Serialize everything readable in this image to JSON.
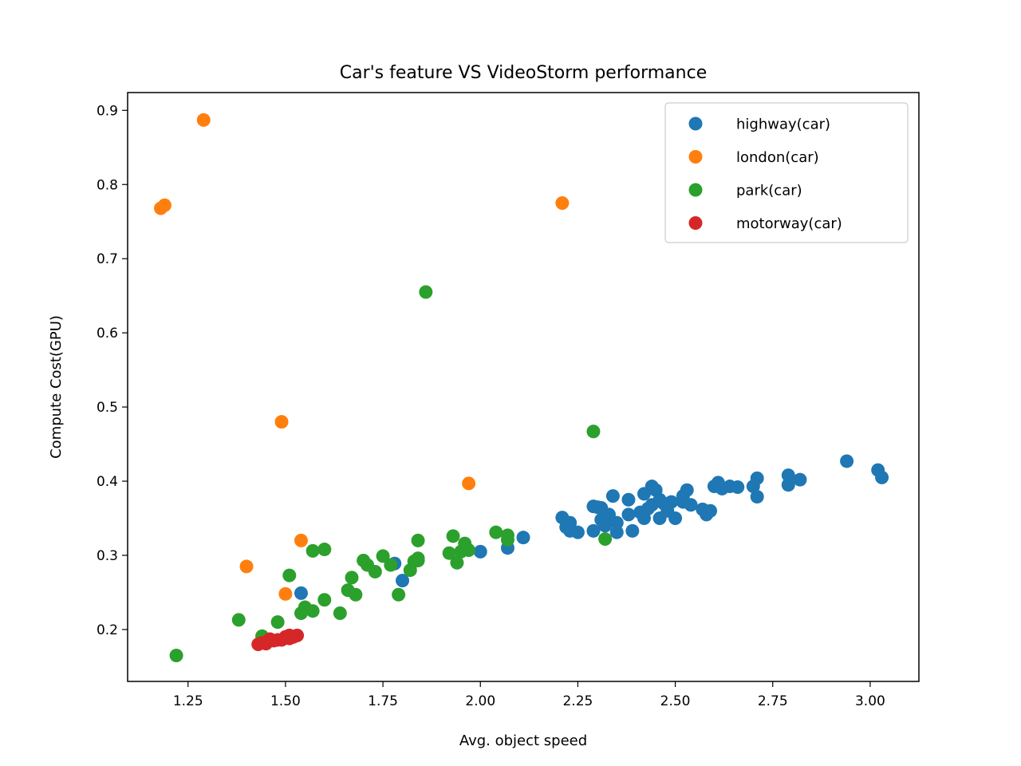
{
  "chart_data": {
    "type": "scatter",
    "title": "Car's feature VS VideoStorm performance",
    "xlabel": "Avg. object speed",
    "ylabel": "Compute Cost(GPU)",
    "xlim": [
      1.095,
      3.125
    ],
    "ylim": [
      0.13,
      0.924
    ],
    "xticks": [
      "1.25",
      "1.50",
      "1.75",
      "2.00",
      "2.25",
      "2.50",
      "2.75",
      "3.00"
    ],
    "yticks": [
      "0.2",
      "0.3",
      "0.4",
      "0.5",
      "0.6",
      "0.7",
      "0.8",
      "0.9"
    ],
    "grid": false,
    "legend_position": "top-right",
    "series": [
      {
        "name": "highway(car)",
        "color": "#1f77b4",
        "points": [
          [
            1.54,
            0.249
          ],
          [
            1.78,
            0.289
          ],
          [
            1.8,
            0.266
          ],
          [
            2.0,
            0.305
          ],
          [
            2.07,
            0.31
          ],
          [
            2.11,
            0.324
          ],
          [
            2.21,
            0.351
          ],
          [
            2.22,
            0.338
          ],
          [
            2.23,
            0.344
          ],
          [
            2.23,
            0.333
          ],
          [
            2.25,
            0.331
          ],
          [
            2.29,
            0.366
          ],
          [
            2.3,
            0.365
          ],
          [
            2.29,
            0.333
          ],
          [
            2.31,
            0.364
          ],
          [
            2.31,
            0.348
          ],
          [
            2.32,
            0.34
          ],
          [
            2.33,
            0.355
          ],
          [
            2.34,
            0.38
          ],
          [
            2.35,
            0.344
          ],
          [
            2.35,
            0.331
          ],
          [
            2.38,
            0.375
          ],
          [
            2.38,
            0.355
          ],
          [
            2.39,
            0.333
          ],
          [
            2.41,
            0.358
          ],
          [
            2.42,
            0.383
          ],
          [
            2.42,
            0.35
          ],
          [
            2.43,
            0.363
          ],
          [
            2.44,
            0.368
          ],
          [
            2.44,
            0.393
          ],
          [
            2.45,
            0.388
          ],
          [
            2.46,
            0.375
          ],
          [
            2.46,
            0.35
          ],
          [
            2.47,
            0.37
          ],
          [
            2.48,
            0.36
          ],
          [
            2.49,
            0.372
          ],
          [
            2.5,
            0.35
          ],
          [
            2.52,
            0.38
          ],
          [
            2.52,
            0.372
          ],
          [
            2.53,
            0.388
          ],
          [
            2.54,
            0.368
          ],
          [
            2.57,
            0.362
          ],
          [
            2.58,
            0.355
          ],
          [
            2.59,
            0.36
          ],
          [
            2.6,
            0.393
          ],
          [
            2.61,
            0.398
          ],
          [
            2.62,
            0.39
          ],
          [
            2.64,
            0.393
          ],
          [
            2.66,
            0.392
          ],
          [
            2.7,
            0.393
          ],
          [
            2.71,
            0.404
          ],
          [
            2.71,
            0.379
          ],
          [
            2.79,
            0.408
          ],
          [
            2.79,
            0.395
          ],
          [
            2.82,
            0.402
          ],
          [
            2.94,
            0.427
          ],
          [
            3.02,
            0.415
          ],
          [
            3.03,
            0.405
          ]
        ]
      },
      {
        "name": "london(car)",
        "color": "#ff7f0e",
        "points": [
          [
            1.18,
            0.768
          ],
          [
            1.19,
            0.772
          ],
          [
            1.29,
            0.887
          ],
          [
            1.4,
            0.285
          ],
          [
            1.49,
            0.48
          ],
          [
            1.5,
            0.248
          ],
          [
            1.54,
            0.32
          ],
          [
            1.97,
            0.397
          ],
          [
            2.21,
            0.775
          ]
        ]
      },
      {
        "name": "park(car)",
        "color": "#2ca02c",
        "points": [
          [
            1.22,
            0.165
          ],
          [
            1.38,
            0.213
          ],
          [
            1.44,
            0.191
          ],
          [
            1.48,
            0.21
          ],
          [
            1.51,
            0.273
          ],
          [
            1.54,
            0.222
          ],
          [
            1.55,
            0.23
          ],
          [
            1.57,
            0.225
          ],
          [
            1.57,
            0.306
          ],
          [
            1.6,
            0.308
          ],
          [
            1.6,
            0.24
          ],
          [
            1.64,
            0.222
          ],
          [
            1.66,
            0.253
          ],
          [
            1.67,
            0.27
          ],
          [
            1.68,
            0.247
          ],
          [
            1.7,
            0.293
          ],
          [
            1.71,
            0.287
          ],
          [
            1.73,
            0.278
          ],
          [
            1.75,
            0.299
          ],
          [
            1.77,
            0.287
          ],
          [
            1.79,
            0.247
          ],
          [
            1.82,
            0.28
          ],
          [
            1.83,
            0.292
          ],
          [
            1.84,
            0.296
          ],
          [
            1.84,
            0.293
          ],
          [
            1.84,
            0.32
          ],
          [
            1.86,
            0.655
          ],
          [
            1.92,
            0.303
          ],
          [
            1.93,
            0.326
          ],
          [
            1.94,
            0.29
          ],
          [
            1.95,
            0.305
          ],
          [
            1.96,
            0.316
          ],
          [
            1.97,
            0.307
          ],
          [
            2.04,
            0.331
          ],
          [
            2.07,
            0.327
          ],
          [
            2.07,
            0.321
          ],
          [
            2.29,
            0.467
          ],
          [
            2.32,
            0.322
          ]
        ]
      },
      {
        "name": "motorway(car)",
        "color": "#d62728",
        "points": [
          [
            1.43,
            0.18
          ],
          [
            1.44,
            0.182
          ],
          [
            1.45,
            0.181
          ],
          [
            1.46,
            0.187
          ],
          [
            1.47,
            0.185
          ],
          [
            1.48,
            0.186
          ],
          [
            1.49,
            0.186
          ],
          [
            1.5,
            0.19
          ],
          [
            1.51,
            0.192
          ],
          [
            1.51,
            0.188
          ],
          [
            1.52,
            0.19
          ],
          [
            1.53,
            0.192
          ]
        ]
      }
    ]
  }
}
